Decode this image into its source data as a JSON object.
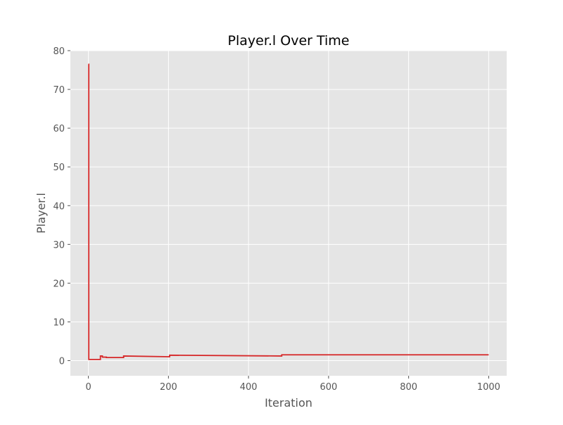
{
  "chart_data": {
    "type": "line",
    "title": "Player.l Over Time",
    "xlabel": "Iteration",
    "ylabel": "Player.l",
    "xlim": [
      -45,
      1045
    ],
    "ylim": [
      -3.9,
      80
    ],
    "xticks": [
      0,
      200,
      400,
      600,
      800,
      1000
    ],
    "yticks": [
      0,
      10,
      20,
      30,
      40,
      50,
      60,
      70,
      80
    ],
    "grid": true,
    "background_color": "#e5e5e5",
    "grid_color": "#ffffff",
    "series": [
      {
        "color": "#d62728",
        "x": [
          0,
          1,
          1,
          30,
          30,
          35,
          35,
          45,
          45,
          88,
          88,
          203,
          203,
          483,
          483,
          1000
        ],
        "y": [
          76.5,
          76.5,
          0.3,
          0.3,
          1.2,
          1.2,
          0.9,
          0.9,
          0.8,
          0.8,
          1.2,
          1.0,
          1.4,
          1.2,
          1.5,
          1.5
        ]
      }
    ]
  }
}
